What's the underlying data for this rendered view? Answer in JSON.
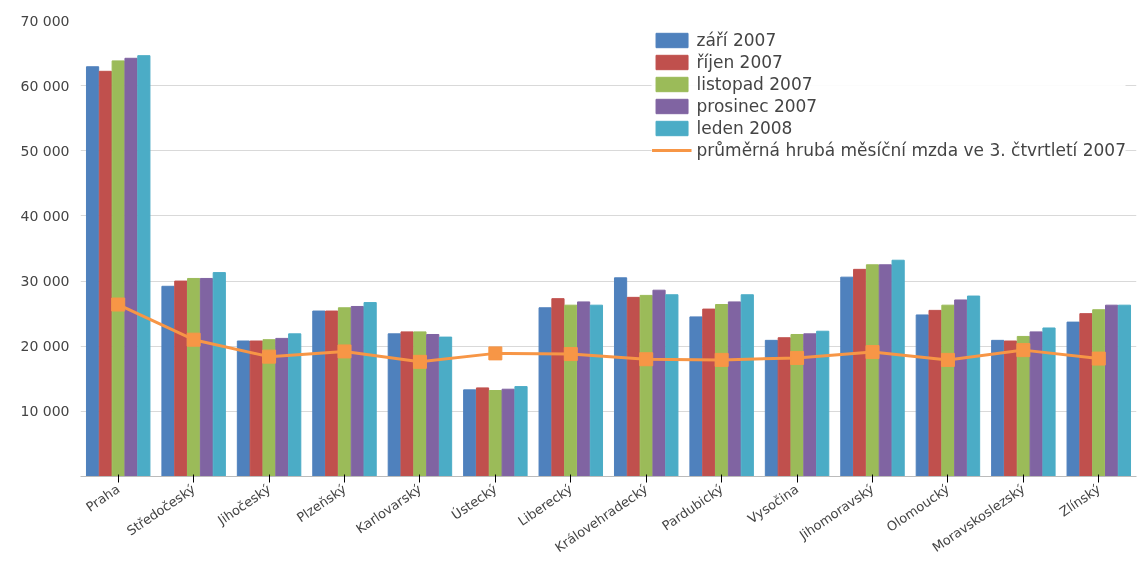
{
  "chart_data": {
    "type": "bar",
    "categories": [
      "Praha",
      "Středočeský",
      "Jihočeský",
      "Plzeňský",
      "Karlovarský",
      "Ústecký",
      "Liberecký",
      "Královehradecký",
      "Pardubický",
      "Vysočina",
      "Jihomoravský",
      "Olomoucký",
      "Moravskoslezský",
      "Zlínský"
    ],
    "series": [
      {
        "name": "září 2007",
        "color": "#4f81bd",
        "values": [
          62900,
          29200,
          20800,
          25400,
          21900,
          13300,
          25900,
          30500,
          24500,
          20900,
          30600,
          24800,
          20900,
          23700
        ]
      },
      {
        "name": "říjen 2007",
        "color": "#c0504d",
        "values": [
          62200,
          30000,
          20800,
          25400,
          22200,
          13600,
          27300,
          27500,
          25700,
          21300,
          31800,
          25500,
          20800,
          25000
        ]
      },
      {
        "name": "listopad 2007",
        "color": "#9bbb59",
        "values": [
          63800,
          30400,
          21000,
          25900,
          22200,
          13200,
          26300,
          27800,
          26400,
          21800,
          32500,
          26300,
          21500,
          25600
        ]
      },
      {
        "name": "prosinec 2007",
        "color": "#8064a2",
        "values": [
          64200,
          30400,
          21200,
          26100,
          21800,
          13400,
          26800,
          28600,
          26800,
          21900,
          32500,
          27100,
          22200,
          26300
        ]
      },
      {
        "name": "leden 2008",
        "color": "#4bacc6",
        "values": [
          64600,
          31300,
          21900,
          26700,
          21400,
          13800,
          26300,
          27900,
          27900,
          22300,
          33200,
          27700,
          22800,
          26300
        ]
      },
      {
        "name": "průměrná hrubá měsíční mzda ve 3. čtvrtletí 2007",
        "type": "line",
        "color": "#f79646",
        "marker": "square",
        "values": [
          26400,
          21000,
          18400,
          19200,
          17600,
          18900,
          18800,
          18000,
          17900,
          18200,
          19100,
          17900,
          19400,
          18100
        ]
      }
    ],
    "ylim": [
      0,
      70000
    ],
    "yticks": [
      {
        "value": 0,
        "label": null
      },
      {
        "value": 10000,
        "label": "10 000"
      },
      {
        "value": 20000,
        "label": "20 000"
      },
      {
        "value": 30000,
        "label": "30 000"
      },
      {
        "value": 40000,
        "label": "40 000"
      },
      {
        "value": 50000,
        "label": "50 000"
      },
      {
        "value": 60000,
        "label": "60 000"
      },
      {
        "value": 70000,
        "label": "70 000"
      }
    ],
    "grid": "y",
    "legend": "top right"
  }
}
